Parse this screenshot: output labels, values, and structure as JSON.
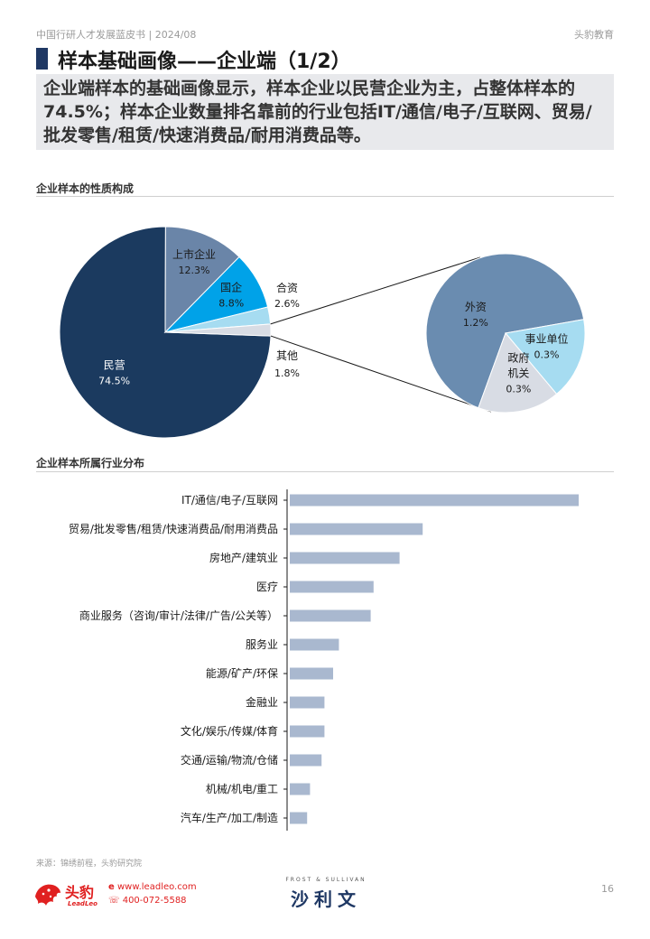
{
  "header": {
    "left": "中国行研人才发展蓝皮书 | 2024/08",
    "right": "头豹教育"
  },
  "title": "样本基础画像——企业端（1/2）",
  "summary": "企业端样本的基础画像显示，样本企业以民营企业为主，占整体样本的74.5%；样本企业数量排名靠前的行业包括IT/通信/电子/互联网、贸易/批发零售/租赁/快速消费品/耐用消费品等。",
  "section1_title": "企业样本的性质构成",
  "section2_title": "企业样本所属行业分布",
  "chart_data": [
    {
      "type": "pie",
      "title": "企业样本的性质构成",
      "slices": [
        {
          "label": "民营",
          "value": 74.5,
          "display": "74.5%",
          "color": "#1b3a5f"
        },
        {
          "label": "上市企业",
          "value": 12.3,
          "display": "12.3%",
          "color": "#6a85a8"
        },
        {
          "label": "国企",
          "value": 8.8,
          "display": "8.8%",
          "color": "#00a2e8"
        },
        {
          "label": "合资",
          "value": 2.6,
          "display": "2.6%",
          "color": "#a6dcf1"
        },
        {
          "label": "其他",
          "value": 1.8,
          "display": "1.8%",
          "color": "#d8dce4"
        }
      ],
      "breakdown_of": "其他",
      "breakdown": [
        {
          "label": "外资",
          "value": 1.2,
          "display": "1.2%",
          "color": "#6a8cb0"
        },
        {
          "label": "事业单位",
          "value": 0.3,
          "display": "0.3%",
          "color": "#a6dcf1"
        },
        {
          "label": "政府机关",
          "value": 0.3,
          "display": "0.3%",
          "color": "#d8dce4"
        }
      ]
    },
    {
      "type": "bar",
      "orientation": "horizontal",
      "title": "企业样本所属行业分布",
      "categories": [
        "IT/通信/电子/互联网",
        "贸易/批发零售/租赁/快速消费品/耐用消费品",
        "房地产/建筑业",
        "医疗",
        "商业服务（咨询/审计/法律/广告/公关等）",
        "服务业",
        "能源/矿产/环保",
        "金融业",
        "文化/娱乐/传媒/体育",
        "交通/运输/物流/仓储",
        "机械/机电/重工",
        "汽车/生产/加工/制造"
      ],
      "values": [
        100,
        46,
        38,
        29,
        28,
        17,
        15,
        12,
        12,
        11,
        7,
        6
      ],
      "bar_color": "#a9b8cf",
      "value_axis_labels_shown": false
    }
  ],
  "footer": {
    "source": "来源：锦绣前程，头豹研究院",
    "brand": "头豹",
    "brand_sub": "LeadLeo",
    "website": "www.leadleo.com",
    "phone": "400-072-5588",
    "partner_small": "FROST & SULLIVAN",
    "partner_big": "沙利文",
    "page": "16"
  }
}
